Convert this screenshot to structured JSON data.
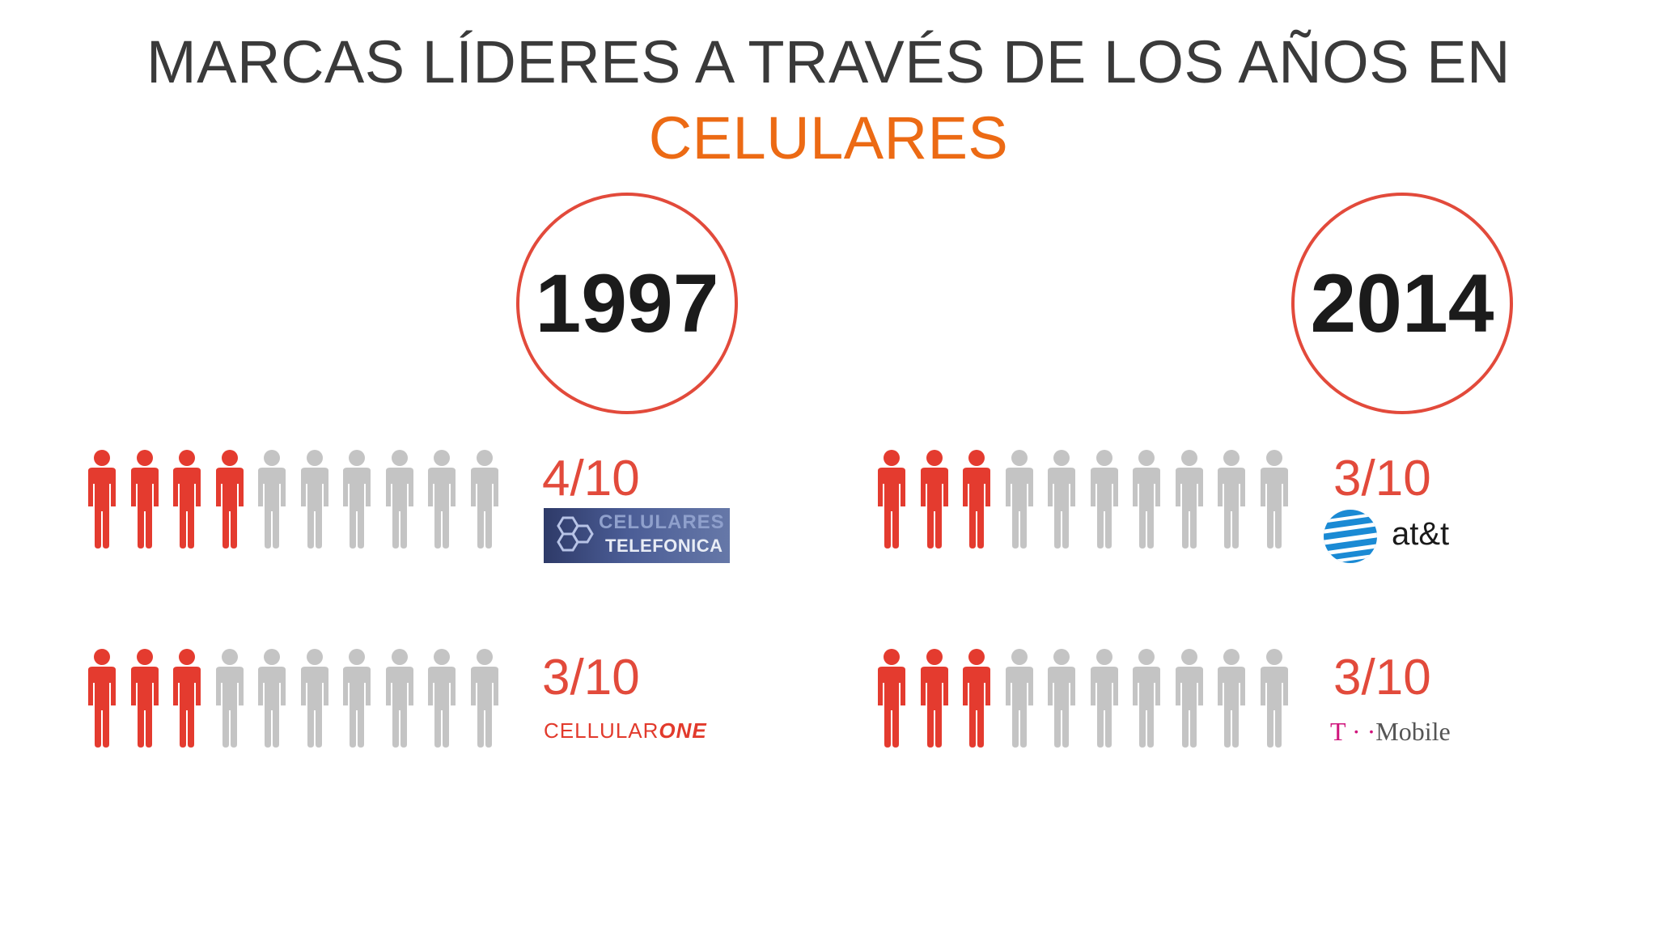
{
  "title": {
    "line1": "MARCAS LÍDERES A TRAVÉS DE LOS AÑOS EN",
    "line2": "CELULARES"
  },
  "years": [
    "1997",
    "2014"
  ],
  "rows": [
    {
      "year": "1997",
      "score": "4/10",
      "filled": 4,
      "total": 10,
      "brand": "Celulares Telefónica"
    },
    {
      "year": "1997",
      "score": "3/10",
      "filled": 3,
      "total": 10,
      "brand": "CellularOne"
    },
    {
      "year": "2014",
      "score": "3/10",
      "filled": 3,
      "total": 10,
      "brand": "AT&T"
    },
    {
      "year": "2014",
      "score": "3/10",
      "filled": 3,
      "total": 10,
      "brand": "T-Mobile"
    }
  ],
  "logos": {
    "telefonica_line1": "CELULARES",
    "telefonica_line2": "TELEFONICA",
    "cellularone_a": "CELLULAR",
    "cellularone_b": "ONE",
    "att": "at&t",
    "tmobile_t": "T",
    "tmobile_dots": "· ·",
    "tmobile_name": "Mobile"
  },
  "colors": {
    "filled": "#e43b2f",
    "empty": "#c4c4c4",
    "accent": "#ec6a14",
    "circle": "#e24a3b"
  },
  "icons": {
    "person": "person-icon"
  }
}
